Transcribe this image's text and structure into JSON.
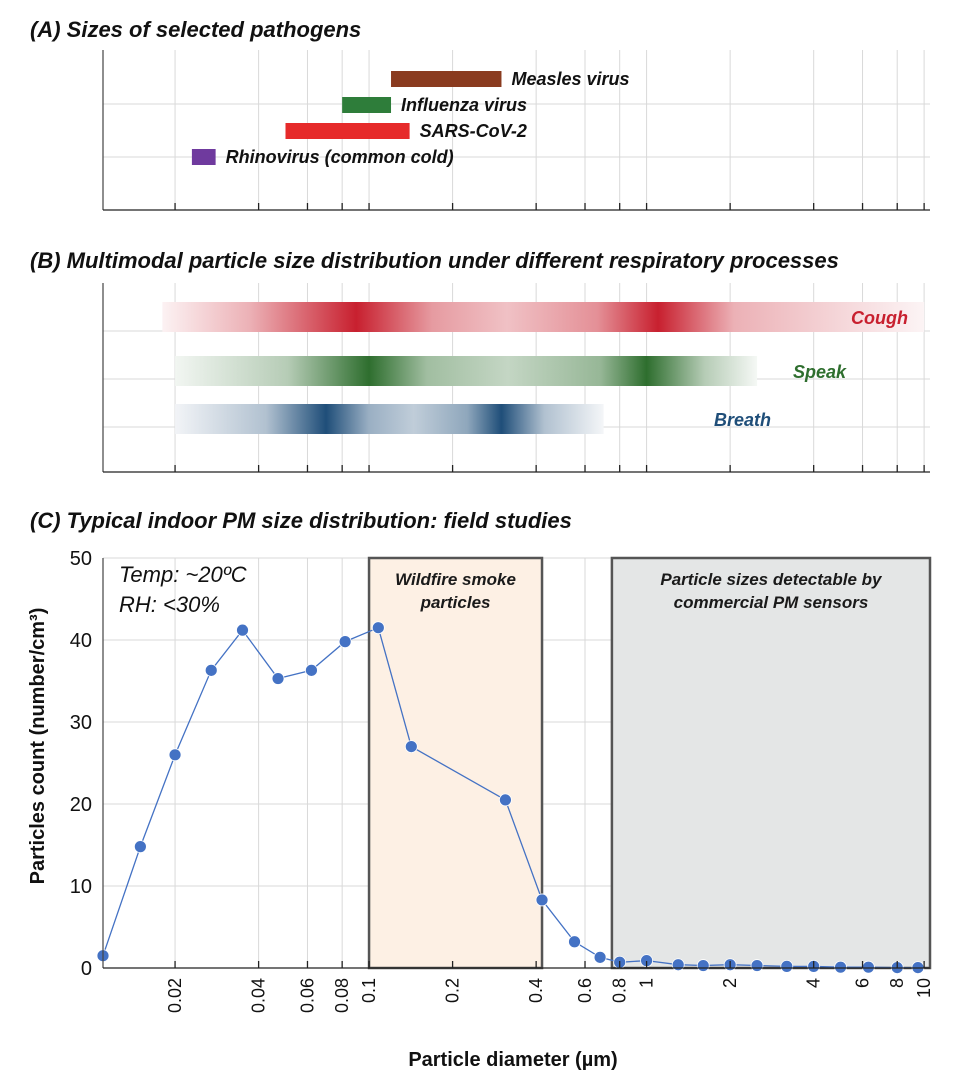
{
  "panel_a": {
    "title": "(A) Sizes of selected pathogens",
    "pathogens": [
      {
        "name": "Measles virus",
        "min": 0.12,
        "max": 0.3,
        "color": "#8a3b1f"
      },
      {
        "name": "Influenza virus",
        "min": 0.08,
        "max": 0.12,
        "color": "#2e7d3a"
      },
      {
        "name": "SARS-CoV-2",
        "min": 0.05,
        "max": 0.14,
        "color": "#e62a2a"
      },
      {
        "name": "Rhinovirus (common cold)",
        "min": 0.023,
        "max": 0.028,
        "color": "#6f3a9e"
      }
    ]
  },
  "panel_b": {
    "title": "(B) Multimodal particle size distribution under different respiratory processes",
    "processes": [
      {
        "name": "Cough",
        "color": "#c8202f",
        "from": 0.018,
        "to": 10,
        "modes": [
          0.09,
          1.1
        ]
      },
      {
        "name": "Speak",
        "color": "#2e6e2e",
        "from": 0.02,
        "to": 2.5,
        "modes": [
          0.1,
          1.0
        ]
      },
      {
        "name": "Breath",
        "color": "#1f4e79",
        "from": 0.02,
        "to": 0.7,
        "modes": [
          0.07,
          0.3
        ]
      }
    ]
  },
  "panel_c": {
    "title": "(C) Typical indoor PM size distribution: field studies",
    "conditions": [
      "Temp: ~20ºC",
      "RH: <30%"
    ],
    "regions": [
      {
        "label_lines": [
          "Wildfire smoke",
          "particles"
        ],
        "from": 0.1,
        "to": 0.42,
        "fill": "#fdf0e4"
      },
      {
        "label_lines": [
          "Particle sizes detectable by",
          "commercial PM sensors"
        ],
        "from": 0.75,
        "to": 10.5,
        "fill": "#e4e6e6"
      }
    ]
  },
  "axes": {
    "x_tick_labels": [
      "0.02",
      "0.04",
      "0.06",
      "0.08",
      "0.1",
      "0.2",
      "0.4",
      "0.6",
      "0.8",
      "1",
      "2",
      "4",
      "6",
      "8",
      "10"
    ],
    "x_tick_values": [
      0.02,
      0.04,
      0.06,
      0.08,
      0.1,
      0.2,
      0.4,
      0.6,
      0.8,
      1,
      2,
      4,
      6,
      8,
      10
    ],
    "y_tick_labels": [
      "0",
      "10",
      "20",
      "30",
      "40",
      "50"
    ],
    "xlabel": "Particle diameter (µm)",
    "ylabel": "Particles count (number/cm³)"
  },
  "chart_data": {
    "type": "scatter",
    "title": "(C) Typical indoor PM size distribution: field studies",
    "xlabel": "Particle diameter (µm)",
    "ylabel": "Particles count (number/cm³)",
    "x_scale": "log",
    "xlim": [
      0.011,
      10.5
    ],
    "ylim": [
      0,
      50
    ],
    "grid": true,
    "series": [
      {
        "color": "#4472c4",
        "x": [
          0.011,
          0.015,
          0.02,
          0.027,
          0.035,
          0.047,
          0.062,
          0.082,
          0.108,
          0.142,
          0.31,
          0.42,
          0.55,
          0.68,
          0.8,
          1.0,
          1.3,
          1.6,
          2.0,
          2.5,
          3.2,
          4.0,
          5.0,
          6.3,
          8.0,
          9.5
        ],
        "y": [
          1.5,
          14.8,
          26,
          36.3,
          41.2,
          35.3,
          36.3,
          39.8,
          41.5,
          27,
          20.5,
          8.3,
          3.2,
          1.3,
          0.7,
          0.9,
          0.4,
          0.3,
          0.4,
          0.3,
          0.2,
          0.2,
          0.1,
          0.1,
          0.05,
          0.05
        ]
      }
    ]
  }
}
